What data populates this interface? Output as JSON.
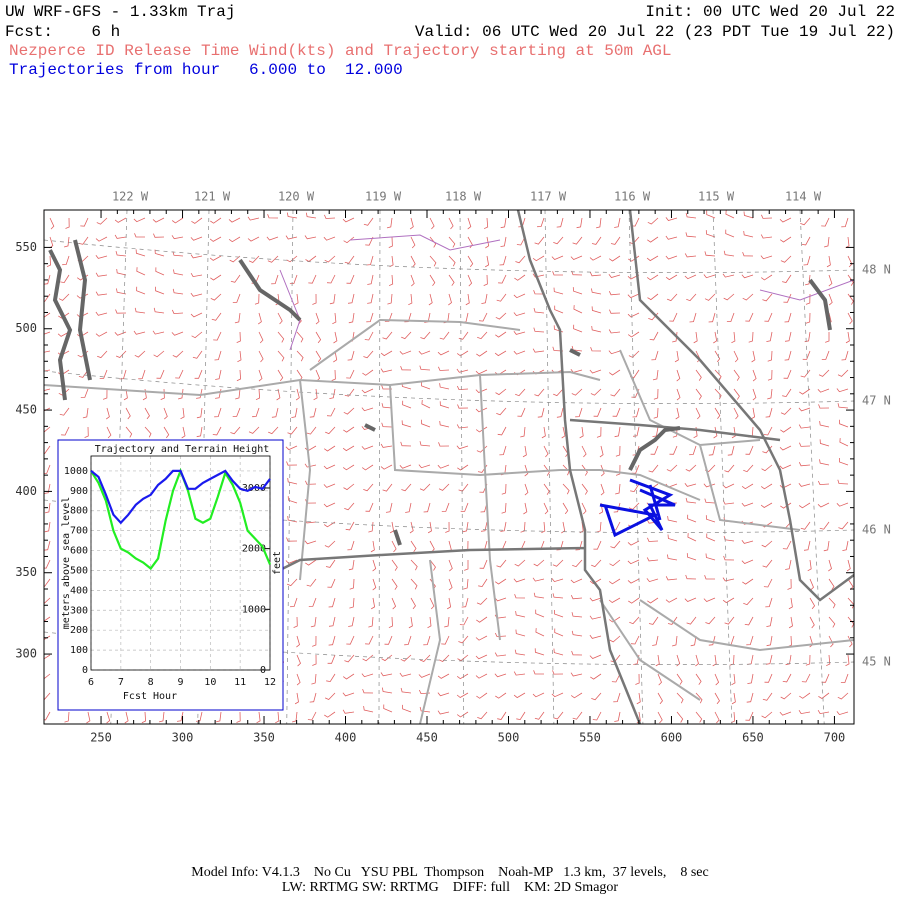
{
  "header": {
    "title": "UW WRF-GFS - 1.33km Traj",
    "init": "Init: 00 UTC Wed 20 Jul 22",
    "forecast": "Fcst:    6 h",
    "valid": "Valid: 06 UTC Wed 20 Jul 22 (23 PDT Tue 19 Jul 22)",
    "description": "Nezperce ID Release Time Wind(kts) and Trajectory starting at 50m AGL",
    "trajectory_range": "Trajectories from hour   6.000 to  12.000"
  },
  "map": {
    "xlim": [
      215,
      712
    ],
    "ylim": [
      257,
      573
    ],
    "xticks": [
      250,
      300,
      350,
      400,
      450,
      500,
      550,
      600,
      650,
      700
    ],
    "yticks": [
      300,
      350,
      400,
      450,
      500,
      550
    ],
    "longitude_labels": [
      "122 W",
      "121 W",
      "120 W",
      "119 W",
      "118 W",
      "117 W",
      "116 W",
      "115 W",
      "114 W"
    ],
    "latitude_labels": [
      "48 N",
      "47 N",
      "46 N",
      "45 N"
    ]
  },
  "chart_data": {
    "type": "line",
    "title": "Trajectory and Terrain Height",
    "xlabel": "Fcst Hour",
    "ylabel": "meters above sea level",
    "y2label": "feet",
    "x": [
      6,
      6.25,
      6.5,
      6.75,
      7,
      7.25,
      7.5,
      7.75,
      8,
      8.25,
      8.5,
      8.75,
      9,
      9.25,
      9.5,
      9.75,
      10,
      10.25,
      10.5,
      10.75,
      11,
      11.25,
      11.5,
      11.75,
      12
    ],
    "series": [
      {
        "color": "#22ee22",
        "values": [
          1000,
          940,
          850,
          700,
          610,
          590,
          560,
          540,
          510,
          560,
          750,
          900,
          1000,
          900,
          760,
          740,
          760,
          870,
          990,
          930,
          840,
          700,
          660,
          620,
          530
        ]
      },
      {
        "color": "#1a1aee",
        "values": [
          1000,
          970,
          880,
          780,
          740,
          780,
          830,
          860,
          880,
          930,
          960,
          1000,
          1000,
          910,
          910,
          940,
          960,
          980,
          1000,
          950,
          910,
          900,
          920,
          910,
          960
        ]
      }
    ],
    "xlim": [
      6,
      12
    ],
    "xticks": [
      6,
      7,
      8,
      9,
      10,
      11,
      12
    ],
    "ylim": [
      0,
      1075
    ],
    "yticks": [
      0,
      100,
      200,
      300,
      400,
      500,
      600,
      700,
      800,
      900,
      1000
    ],
    "y2lim": [
      0,
      3527
    ],
    "y2ticks": [
      0,
      1000,
      2000,
      3000
    ],
    "grid": true
  },
  "footer": {
    "line1": "Model Info: V4.1.3    No Cu   YSU PBL  Thompson    Noah-MP   1.3 km,  37 levels,    8 sec",
    "line2": "LW: RRTMG SW: RRTMG    DIFF: full    KM: 2D Smagor"
  }
}
